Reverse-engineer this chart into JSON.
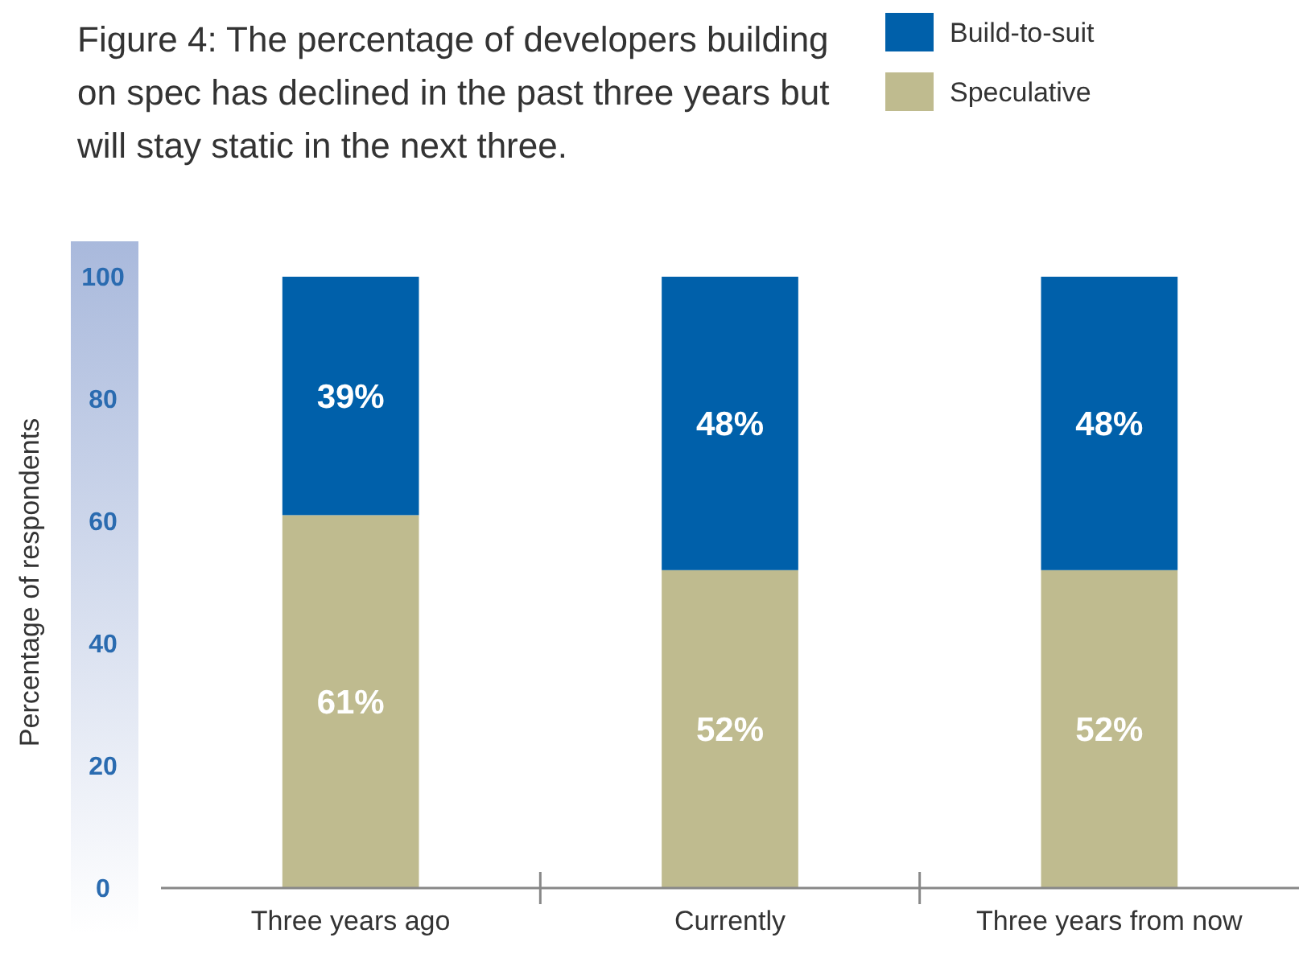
{
  "chart_data": {
    "type": "bar",
    "stacked": true,
    "title": "Figure 4: The percentage of developers building on spec has declined in the past three years but will stay static in the next three.",
    "ylabel": "Percentage of respondents",
    "categories": [
      "Three years ago",
      "Currently",
      "Three years from now"
    ],
    "series": [
      {
        "name": "Speculative",
        "color": "#bfbb8f",
        "values": [
          61,
          52,
          52
        ],
        "value_labels": [
          "61%",
          "52%",
          "52%"
        ]
      },
      {
        "name": "Build-to-suit",
        "color": "#0060aa",
        "values": [
          39,
          48,
          48
        ],
        "value_labels": [
          "39%",
          "48%",
          "48%"
        ]
      }
    ],
    "ylim": [
      0,
      100
    ],
    "yticks": [
      0,
      20,
      40,
      60,
      80,
      100
    ],
    "legend": "top right",
    "grid": false
  }
}
